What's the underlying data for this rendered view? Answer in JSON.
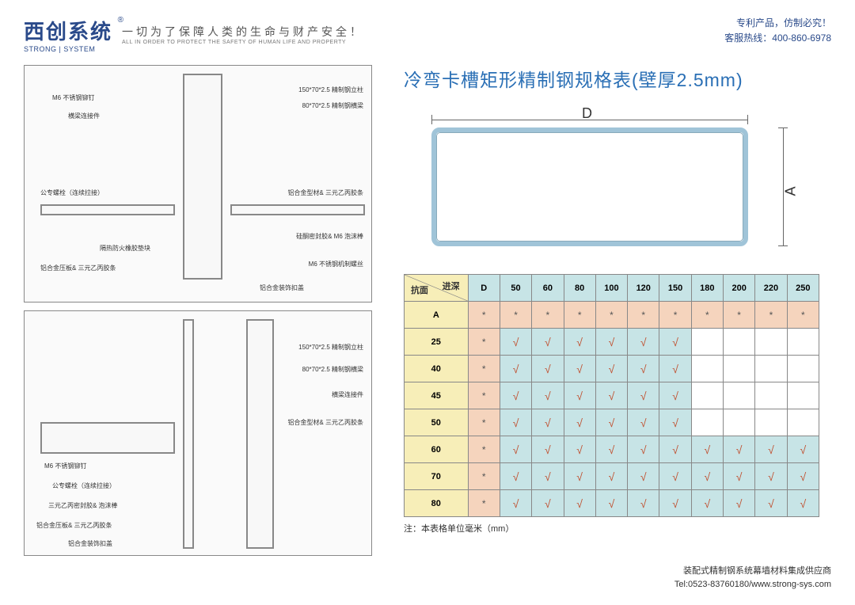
{
  "header": {
    "logo_cn": "西创系统",
    "logo_en": "STRONG | SYSTEM",
    "logo_reg": "®",
    "slogan_cn": "一切为了保障人类的生命与财产安全！",
    "slogan_en": "ALL IN ORDER TO PROTECT THE SAFETY OF HUMAN LIFE AND PROPERTY",
    "patent": "专利产品，仿制必究！",
    "hotline": "客服热线：400-860-6978"
  },
  "tech_top": {
    "l1": "150*70*2.5 精制钢立柱",
    "l2": "80*70*2.5 精制钢横梁",
    "l3": "M6 不锈钢铆钉",
    "l4": "横梁连接件",
    "l5": "公专螺栓（连续拉接）",
    "l6": "铝合金型材& 三元乙丙胶条",
    "l7": "硅酮密封胶& M6 泡沫棒",
    "l8": "隔热防火橡胶垫块",
    "l9": "M6 不锈钢机制螺丝",
    "l10": "铝合金压板& 三元乙丙胶条",
    "l11": "铝合金装饰扣盖"
  },
  "tech_bot": {
    "l1": "150*70*2.5 精制钢立柱",
    "l2": "80*70*2.5 精制钢横梁",
    "l3": "横梁连接件",
    "l4": "铝合金型材& 三元乙丙胶条",
    "l5": "M6 不锈钢铆钉",
    "l6": "公专螺栓（连续拉接）",
    "l7": "三元乙丙密封胶& 泡沫棒",
    "l8": "铝合金压板& 三元乙丙胶条",
    "l9": "铝合金装饰扣盖"
  },
  "spec": {
    "title": "冷弯卡槽矩形精制钢规格表(壁厚2.5mm)",
    "dim_d": "D",
    "dim_a": "A",
    "corner_top": "进深",
    "corner_bottom": "抗面",
    "col_d_label": "D",
    "row_a_label": "A",
    "columns": [
      "50",
      "60",
      "80",
      "100",
      "120",
      "150",
      "180",
      "200",
      "220",
      "250"
    ],
    "rows": [
      "25",
      "40",
      "45",
      "50",
      "60",
      "70",
      "80"
    ],
    "note": "注：本表格单位毫米（mm）",
    "colors": {
      "yellow": "#f7eeb8",
      "peach": "#f5d4bd",
      "blue": "#c7e4e6",
      "white": "#ffffff",
      "border": "#888888",
      "title_color": "#2a6fb5"
    }
  },
  "footer": {
    "line1": "装配式精制钢系统幕墙材料集成供应商",
    "line2": "Tel:0523-83760180/www.strong-sys.com"
  }
}
